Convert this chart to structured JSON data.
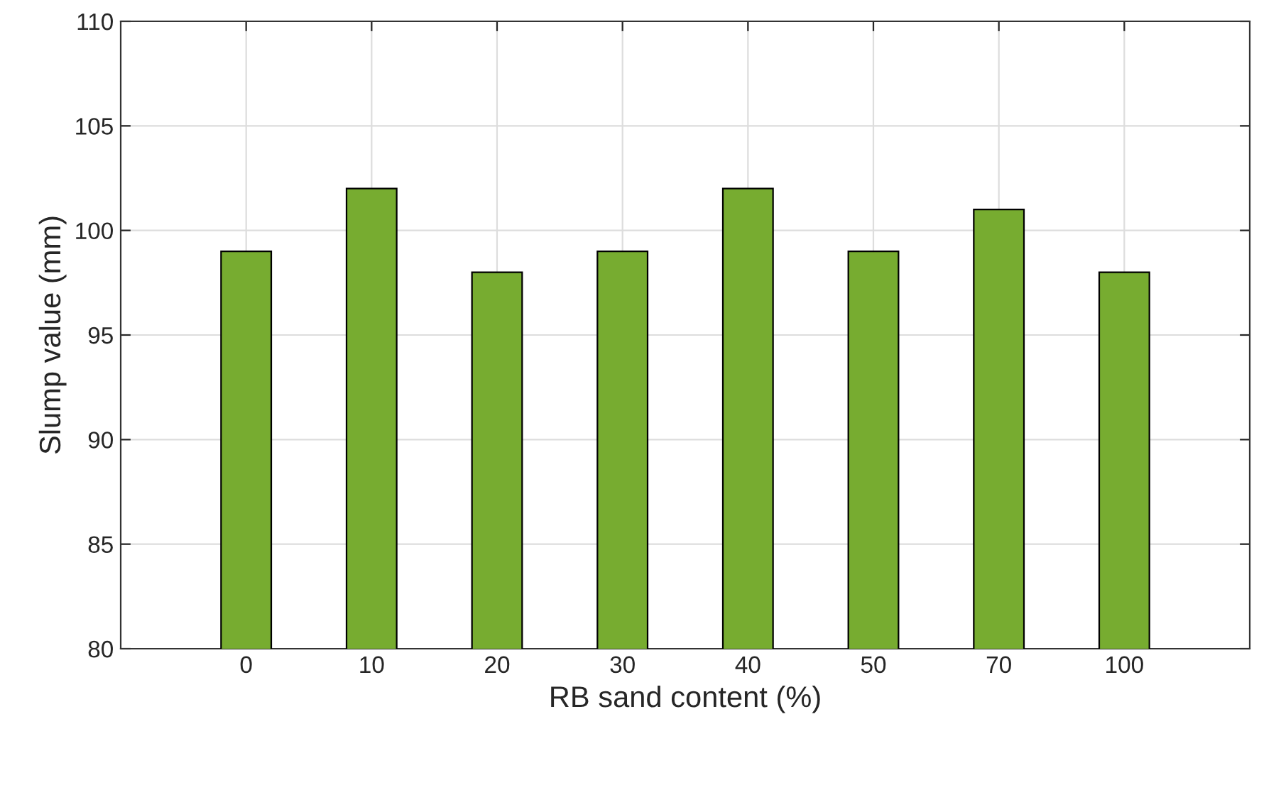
{
  "chart_data": {
    "type": "bar",
    "xlabel": "RB sand content (%)",
    "ylabel": "Slump value (mm)",
    "categories": [
      "0",
      "10",
      "20",
      "30",
      "40",
      "50",
      "70",
      "100"
    ],
    "values": [
      99,
      102,
      98,
      99,
      102,
      99,
      101,
      98
    ],
    "color": "#77ac30",
    "ylim": [
      80,
      110
    ],
    "yticks": [
      80,
      85,
      90,
      95,
      100,
      105,
      110
    ],
    "grid": true
  }
}
